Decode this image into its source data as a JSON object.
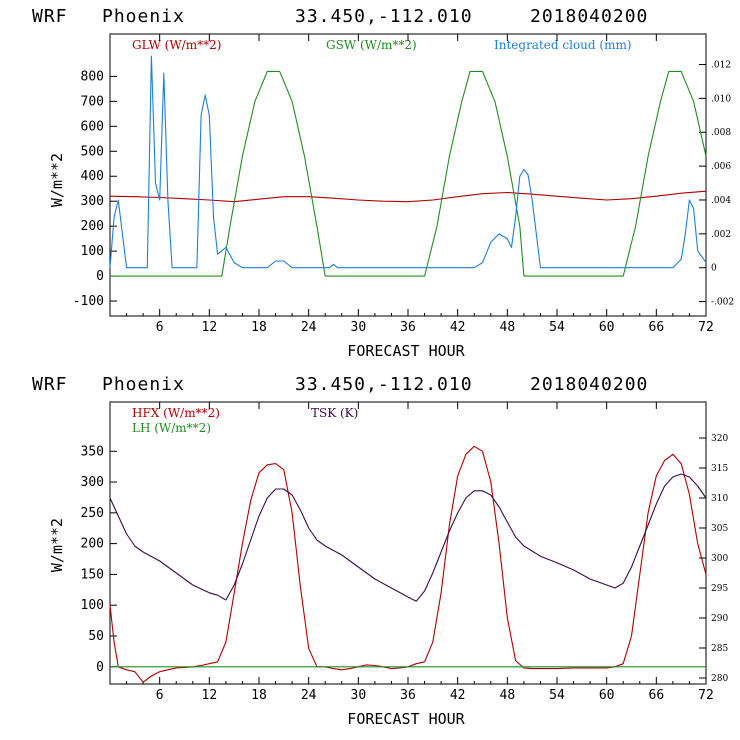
{
  "charts": [
    {
      "header": {
        "model": "WRF",
        "location": "Phoenix",
        "coords": "33.450,-112.010",
        "run": "2018040200"
      },
      "chart_data": {
        "type": "line",
        "title": "WRF Phoenix 33.450,-112.010 2018040200",
        "xlabel": "FORECAST HOUR",
        "ylabel": "W/m**2",
        "xlim": [
          0,
          72
        ],
        "ylim": [
          -160,
          970
        ],
        "y2lim": [
          -0.00285,
          0.0138
        ],
        "x_ticks": [
          6,
          12,
          18,
          24,
          30,
          36,
          42,
          48,
          54,
          60,
          66,
          72
        ],
        "y_ticks": [
          -100,
          0,
          100,
          200,
          300,
          400,
          500,
          600,
          700,
          800
        ],
        "y2_ticks": [
          -0.002,
          0,
          0.002,
          0.004,
          0.006,
          0.008,
          0.01,
          0.012
        ],
        "y2_tick_labels": [
          "-.002",
          "0",
          ".002",
          ".004",
          ".006",
          ".008",
          ".010",
          ".012"
        ],
        "series": [
          {
            "name": "GLW (W/m**2)",
            "axis": "left",
            "color": "#b00000",
            "x": [
              0,
              3,
              6,
              9,
              12,
              15,
              18,
              21,
              24,
              27,
              30,
              33,
              36,
              39,
              42,
              45,
              48,
              51,
              54,
              57,
              60,
              63,
              66,
              69,
              72
            ],
            "values": [
              320,
              318,
              315,
              310,
              305,
              298,
              308,
              318,
              318,
              312,
              305,
              300,
              298,
              305,
              318,
              330,
              335,
              328,
              320,
              312,
              305,
              310,
              320,
              332,
              340
            ]
          },
          {
            "name": "GSW (W/m**2)",
            "axis": "left",
            "color": "#238b23",
            "x": [
              0,
              13.5,
              14.5,
              16,
              17.5,
              19,
              20.5,
              22,
              23.5,
              25,
              26,
              38,
              39.5,
              41,
              42.5,
              43.5,
              45,
              46.5,
              48,
              49.5,
              50,
              62,
              63.5,
              65,
              66.5,
              67.5,
              69,
              70.5,
              72
            ],
            "values": [
              0,
              0,
              200,
              480,
              700,
              820,
              820,
              700,
              480,
              200,
              0,
              0,
              200,
              480,
              700,
              820,
              820,
              700,
              480,
              200,
              0,
              0,
              200,
              480,
              700,
              820,
              820,
              700,
              480
            ]
          },
          {
            "name": "Integrated cloud (mm)",
            "axis": "right",
            "color": "#1e7fd6",
            "x": [
              0,
              0.5,
              1,
              1.5,
              2,
              4.5,
              5,
              5.5,
              6,
              6.5,
              7,
              7.5,
              10.5,
              11,
              11.5,
              12,
              12.5,
              13,
              14,
              15,
              16,
              19,
              20,
              21,
              22,
              26.5,
              27,
              27.5,
              44,
              45,
              46,
              47,
              48,
              48.5,
              49,
              49.5,
              50,
              50.5,
              51,
              52,
              68,
              69,
              69.5,
              70,
              70.5,
              71,
              72
            ],
            "values": [
              0,
              0.003,
              0.004,
              0.002,
              0,
              0,
              0.0125,
              0.005,
              0.004,
              0.0115,
              0.004,
              0,
              0,
              0.009,
              0.0102,
              0.009,
              0.003,
              0.0008,
              0.0012,
              0.0003,
              0,
              0,
              0.0004,
              0.0004,
              0,
              0,
              0.0002,
              0,
              0,
              0.0003,
              0.0015,
              0.002,
              0.0017,
              0.0012,
              0.003,
              0.0054,
              0.0058,
              0.0055,
              0.004,
              0,
              0,
              0.0005,
              0.002,
              0.004,
              0.0035,
              0.001,
              0.0003
            ]
          }
        ]
      }
    },
    {
      "header": {
        "model": "WRF",
        "location": "Phoenix",
        "coords": "33.450,-112.010",
        "run": "2018040200"
      },
      "chart_data": {
        "type": "line",
        "title": "WRF Phoenix 33.450,-112.010 2018040200",
        "xlabel": "FORECAST HOUR",
        "ylabel": "W/m**2",
        "xlim": [
          0,
          72
        ],
        "ylim": [
          -28,
          430
        ],
        "y2lim": [
          279,
          326
        ],
        "x_ticks": [
          6,
          12,
          18,
          24,
          30,
          36,
          42,
          48,
          54,
          60,
          66,
          72
        ],
        "y_ticks": [
          0,
          50,
          100,
          150,
          200,
          250,
          300,
          350
        ],
        "y2_ticks": [
          280,
          285,
          290,
          295,
          300,
          305,
          310,
          315,
          320
        ],
        "y2_tick_labels": [
          "280",
          "285",
          "290",
          "295",
          "300",
          "305",
          "310",
          "315",
          "320"
        ],
        "series": [
          {
            "name": "HFX (W/m**2)",
            "axis": "left",
            "color": "#b00000",
            "x": [
              0,
              0.5,
              1,
              2,
              3,
              4,
              5,
              6,
              7,
              8,
              9,
              10,
              11,
              12,
              13,
              14,
              15,
              16,
              17,
              18,
              19,
              20,
              21,
              22,
              23,
              24,
              25,
              26,
              27,
              28,
              29,
              30,
              31,
              32,
              33,
              34,
              35,
              36,
              37,
              38,
              39,
              40,
              41,
              42,
              43,
              44,
              45,
              46,
              47,
              48,
              49,
              50,
              51,
              52,
              54,
              56,
              58,
              60,
              61,
              62,
              63,
              64,
              65,
              66,
              67,
              68,
              69,
              70,
              71,
              72
            ],
            "values": [
              100,
              40,
              0,
              -5,
              -8,
              -25,
              -15,
              -8,
              -5,
              -2,
              -1,
              0,
              2,
              5,
              8,
              40,
              120,
              200,
              270,
              315,
              328,
              330,
              320,
              250,
              130,
              30,
              0,
              0,
              -3,
              -5,
              -3,
              0,
              3,
              2,
              0,
              -3,
              -2,
              0,
              5,
              8,
              40,
              120,
              230,
              310,
              345,
              358,
              350,
              300,
              200,
              80,
              10,
              -2,
              -3,
              -3,
              -3,
              -2,
              -2,
              -2,
              0,
              5,
              50,
              150,
              250,
              310,
              335,
              345,
              330,
              280,
              200,
              150
            ]
          },
          {
            "name": "LH (W/m**2)",
            "axis": "left",
            "color": "#238b23",
            "x": [
              0,
              72
            ],
            "values": [
              0,
              0
            ]
          },
          {
            "name": "TSK (K)",
            "axis": "right",
            "color": "#3d0c4a",
            "x": [
              0,
              1,
              2,
              3,
              4,
              6,
              8,
              10,
              12,
              13,
              14,
              15,
              16,
              17,
              18,
              19,
              20,
              21,
              22,
              23,
              24,
              25,
              26,
              28,
              30,
              32,
              34,
              36,
              37,
              38,
              39,
              40,
              41,
              42,
              43,
              44,
              45,
              46,
              47,
              48,
              49,
              50,
              52,
              54,
              56,
              58,
              60,
              61,
              62,
              63,
              64,
              65,
              66,
              67,
              68,
              69,
              70,
              71,
              72
            ],
            "values": [
              310,
              307,
              304,
              302,
              301,
              299.5,
              297.5,
              295.5,
              294.2,
              293.8,
              293,
              295.5,
              299,
              303,
              307,
              310,
              311.5,
              311.5,
              310.5,
              308,
              305,
              303,
              302,
              300.5,
              298.5,
              296.5,
              295,
              293.5,
              292.8,
              294.5,
              297.5,
              301,
              304.5,
              307.5,
              310,
              311.2,
              311.2,
              310.5,
              308.5,
              306,
              303.5,
              302,
              300.3,
              299.2,
              298,
              296.5,
              295.5,
              295,
              295.8,
              298.5,
              302,
              305.5,
              309,
              312,
              313.5,
              314,
              313.5,
              312,
              310
            ]
          }
        ],
        "legend": {
          "HFX": "HFX (W/m**2)",
          "LH": "LH (W/m**2)",
          "TSK": "TSK (K)"
        }
      }
    }
  ]
}
